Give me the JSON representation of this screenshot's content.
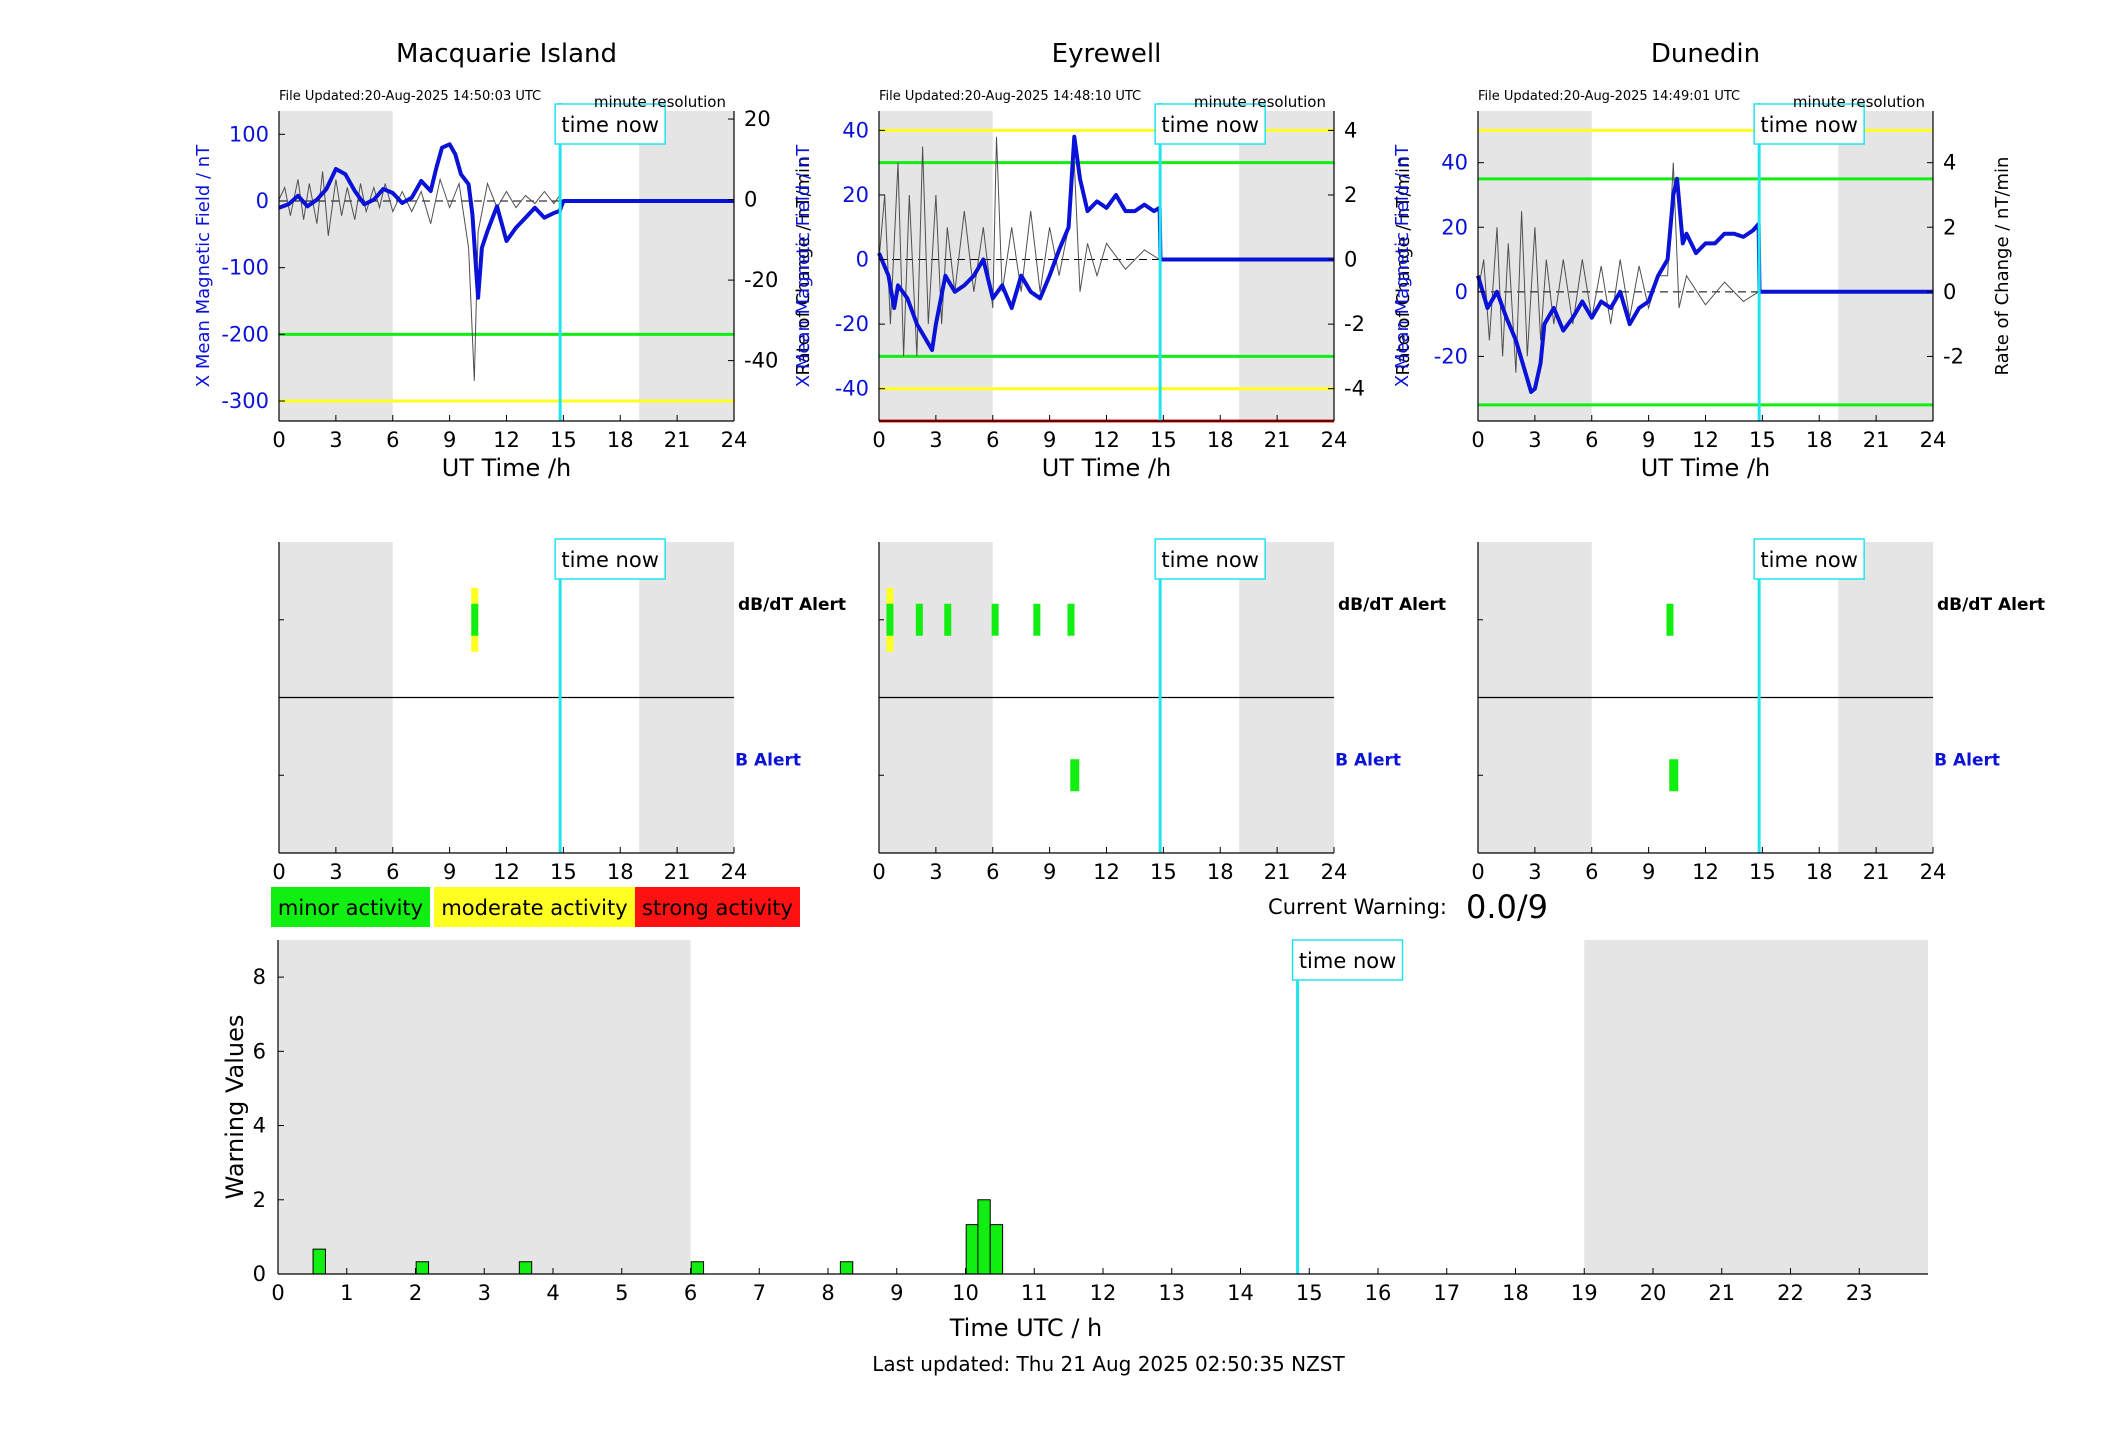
{
  "colors": {
    "x_field": "#0a12d8",
    "rate": "#505050",
    "time_now": "#22e4ee",
    "shade": "#e5e5e5",
    "minor": "#11ee11",
    "moderate": "#ffff22",
    "strong": "#ff1111"
  },
  "stations": [
    {
      "title": "Macquarie Island",
      "file_updated": "File Updated:20-Aug-2025 14:50:03 UTC",
      "resolution": "minute resolution",
      "ylabel_left": "X Mean Magnetic Field / nT",
      "ylabel_right": "Rate of Change / nT/min",
      "xlabel": "UT Time /h",
      "time_now_label": "time now",
      "ylim_left": [
        -330,
        135
      ],
      "yticks_left": [
        -300,
        -200,
        -100,
        0,
        100
      ],
      "ylim_right": [
        -55,
        22
      ],
      "yticks_right": [
        -40,
        -20,
        0,
        20
      ],
      "xticks": [
        0,
        3,
        6,
        9,
        12,
        15,
        18,
        21,
        24
      ],
      "xlim": [
        0,
        24
      ],
      "shade": [
        [
          0,
          6
        ],
        [
          19,
          24
        ]
      ],
      "time_now": 14.83,
      "thresholds": [
        {
          "value": -200,
          "level": "minor"
        },
        {
          "value": -300,
          "level": "moderate"
        }
      ],
      "x_series": [
        [
          0,
          -10
        ],
        [
          0.5,
          -5
        ],
        [
          1,
          8
        ],
        [
          1.5,
          -8
        ],
        [
          2,
          2
        ],
        [
          2.5,
          18
        ],
        [
          3,
          48
        ],
        [
          3.5,
          40
        ],
        [
          4,
          15
        ],
        [
          4.5,
          -5
        ],
        [
          5,
          2
        ],
        [
          5.5,
          18
        ],
        [
          6,
          12
        ],
        [
          6.5,
          -3
        ],
        [
          7,
          5
        ],
        [
          7.5,
          30
        ],
        [
          8,
          15
        ],
        [
          8.3,
          50
        ],
        [
          8.6,
          80
        ],
        [
          9,
          85
        ],
        [
          9.3,
          70
        ],
        [
          9.6,
          40
        ],
        [
          10,
          25
        ],
        [
          10.2,
          -20
        ],
        [
          10.4,
          -105
        ],
        [
          10.5,
          -145
        ],
        [
          10.7,
          -70
        ],
        [
          11,
          -45
        ],
        [
          11.5,
          -8
        ],
        [
          12,
          -60
        ],
        [
          12.5,
          -40
        ],
        [
          13,
          -25
        ],
        [
          13.5,
          -10
        ],
        [
          14,
          -25
        ],
        [
          14.5,
          -18
        ],
        [
          14.8,
          -15
        ],
        [
          15,
          0
        ],
        [
          24,
          0
        ]
      ],
      "rate_series": [
        [
          0,
          0
        ],
        [
          0.3,
          3
        ],
        [
          0.6,
          -4
        ],
        [
          1,
          5
        ],
        [
          1.3,
          -5
        ],
        [
          1.6,
          4
        ],
        [
          2,
          -6
        ],
        [
          2.3,
          7
        ],
        [
          2.6,
          -9
        ],
        [
          3,
          5
        ],
        [
          3.3,
          -4
        ],
        [
          3.6,
          3
        ],
        [
          4,
          -5
        ],
        [
          4.3,
          4
        ],
        [
          4.6,
          -3
        ],
        [
          5,
          3
        ],
        [
          5.3,
          -2
        ],
        [
          5.6,
          4
        ],
        [
          6,
          -3
        ],
        [
          6.5,
          2
        ],
        [
          7,
          -3
        ],
        [
          7.5,
          2
        ],
        [
          8,
          -6
        ],
        [
          8.5,
          5
        ],
        [
          9,
          -2
        ],
        [
          9.5,
          4
        ],
        [
          10,
          -12
        ],
        [
          10.3,
          -45
        ],
        [
          10.5,
          -8
        ],
        [
          11,
          4
        ],
        [
          11.5,
          -2
        ],
        [
          12,
          2
        ],
        [
          12.5,
          -2
        ],
        [
          13,
          1
        ],
        [
          13.5,
          -1
        ],
        [
          14,
          2
        ],
        [
          14.5,
          -1
        ],
        [
          14.8,
          1
        ]
      ]
    },
    {
      "title": "Eyrewell",
      "file_updated": "File Updated:20-Aug-2025 14:48:10 UTC",
      "resolution": "minute resolution",
      "ylabel_left": "X Mean Magnetic Field / nT",
      "ylabel_right": "Rate of Change / nT/min",
      "xlabel": "UT Time /h",
      "time_now_label": "time now",
      "ylim_left": [
        -50,
        46
      ],
      "yticks_left": [
        -40,
        -20,
        0,
        20,
        40
      ],
      "ylim_right": [
        -5,
        4.6
      ],
      "yticks_right": [
        -4,
        -2,
        0,
        2,
        4
      ],
      "xticks": [
        0,
        3,
        6,
        9,
        12,
        15,
        18,
        21,
        24
      ],
      "xlim": [
        0,
        24
      ],
      "shade": [
        [
          0,
          6
        ],
        [
          19,
          24
        ]
      ],
      "time_now": 14.83,
      "thresholds": [
        {
          "value": 40,
          "level": "moderate"
        },
        {
          "value": 30,
          "level": "minor"
        },
        {
          "value": -30,
          "level": "minor"
        },
        {
          "value": -40,
          "level": "moderate"
        },
        {
          "value": -50,
          "level": "strong"
        }
      ],
      "x_series": [
        [
          0,
          2
        ],
        [
          0.5,
          -5
        ],
        [
          0.8,
          -15
        ],
        [
          1,
          -8
        ],
        [
          1.5,
          -12
        ],
        [
          2,
          -20
        ],
        [
          2.5,
          -25
        ],
        [
          2.8,
          -28
        ],
        [
          3,
          -20
        ],
        [
          3.5,
          -5
        ],
        [
          4,
          -10
        ],
        [
          4.5,
          -8
        ],
        [
          5,
          -5
        ],
        [
          5.5,
          0
        ],
        [
          6,
          -12
        ],
        [
          6.5,
          -8
        ],
        [
          7,
          -15
        ],
        [
          7.5,
          -5
        ],
        [
          8,
          -10
        ],
        [
          8.5,
          -12
        ],
        [
          9,
          -5
        ],
        [
          9.5,
          3
        ],
        [
          10,
          10
        ],
        [
          10.3,
          38
        ],
        [
          10.6,
          25
        ],
        [
          11,
          15
        ],
        [
          11.5,
          18
        ],
        [
          12,
          16
        ],
        [
          12.5,
          20
        ],
        [
          13,
          15
        ],
        [
          13.5,
          15
        ],
        [
          14,
          17
        ],
        [
          14.5,
          15
        ],
        [
          14.8,
          16
        ],
        [
          14.85,
          0
        ],
        [
          24,
          0
        ]
      ],
      "rate_series": [
        [
          0,
          0
        ],
        [
          0.3,
          2
        ],
        [
          0.6,
          -2
        ],
        [
          1,
          3
        ],
        [
          1.3,
          -3
        ],
        [
          1.6,
          2
        ],
        [
          2,
          -3
        ],
        [
          2.3,
          3.5
        ],
        [
          2.6,
          -2
        ],
        [
          3,
          2
        ],
        [
          3.3,
          -2
        ],
        [
          3.6,
          1
        ],
        [
          4,
          -1
        ],
        [
          4.5,
          1.5
        ],
        [
          5,
          -1
        ],
        [
          5.5,
          1
        ],
        [
          6,
          -1.5
        ],
        [
          6.2,
          3.8
        ],
        [
          6.5,
          -1
        ],
        [
          7,
          1
        ],
        [
          7.5,
          -1
        ],
        [
          8,
          1.5
        ],
        [
          8.5,
          -1
        ],
        [
          9,
          1
        ],
        [
          9.5,
          -0.5
        ],
        [
          10,
          1
        ],
        [
          10.3,
          3
        ],
        [
          10.6,
          -1
        ],
        [
          11,
          0.5
        ],
        [
          11.5,
          -0.5
        ],
        [
          12,
          0.5
        ],
        [
          13,
          -0.3
        ],
        [
          14,
          0.3
        ],
        [
          14.8,
          0
        ]
      ]
    },
    {
      "title": "Dunedin",
      "file_updated": "File Updated:20-Aug-2025 14:49:01 UTC",
      "resolution": "minute resolution",
      "ylabel_left": "X Mean Magnetic Field / nT",
      "ylabel_right": "Rate of Change / nT/min",
      "xlabel": "UT Time /h",
      "time_now_label": "time now",
      "ylim_left": [
        -40,
        56
      ],
      "yticks_left": [
        -20,
        0,
        20,
        40
      ],
      "ylim_right": [
        -4,
        5.6
      ],
      "yticks_right": [
        -2,
        0,
        2,
        4
      ],
      "xticks": [
        0,
        3,
        6,
        9,
        12,
        15,
        18,
        21,
        24
      ],
      "xlim": [
        0,
        24
      ],
      "shade": [
        [
          0,
          6
        ],
        [
          19,
          24
        ]
      ],
      "time_now": 14.83,
      "thresholds": [
        {
          "value": 50,
          "level": "moderate"
        },
        {
          "value": 35,
          "level": "minor"
        },
        {
          "value": -35,
          "level": "minor"
        }
      ],
      "x_series": [
        [
          0,
          5
        ],
        [
          0.5,
          -5
        ],
        [
          1,
          0
        ],
        [
          1.5,
          -8
        ],
        [
          2,
          -15
        ],
        [
          2.5,
          -25
        ],
        [
          2.8,
          -31
        ],
        [
          3,
          -30
        ],
        [
          3.3,
          -22
        ],
        [
          3.5,
          -10
        ],
        [
          4,
          -5
        ],
        [
          4.5,
          -12
        ],
        [
          5,
          -8
        ],
        [
          5.5,
          -3
        ],
        [
          6,
          -8
        ],
        [
          6.5,
          -3
        ],
        [
          7,
          -5
        ],
        [
          7.5,
          0
        ],
        [
          8,
          -10
        ],
        [
          8.5,
          -5
        ],
        [
          9,
          -3
        ],
        [
          9.5,
          5
        ],
        [
          10,
          10
        ],
        [
          10.3,
          30
        ],
        [
          10.5,
          35
        ],
        [
          10.8,
          15
        ],
        [
          11,
          18
        ],
        [
          11.5,
          12
        ],
        [
          12,
          15
        ],
        [
          12.5,
          15
        ],
        [
          13,
          18
        ],
        [
          13.5,
          18
        ],
        [
          14,
          17
        ],
        [
          14.5,
          19
        ],
        [
          14.8,
          21
        ],
        [
          14.85,
          0
        ],
        [
          24,
          0
        ]
      ],
      "rate_series": [
        [
          0,
          0
        ],
        [
          0.3,
          1
        ],
        [
          0.6,
          -1.5
        ],
        [
          1,
          2
        ],
        [
          1.3,
          -2
        ],
        [
          1.6,
          1.5
        ],
        [
          2,
          -2.5
        ],
        [
          2.3,
          2.5
        ],
        [
          2.6,
          -2
        ],
        [
          3,
          2
        ],
        [
          3.3,
          -1.5
        ],
        [
          3.6,
          1
        ],
        [
          4,
          -1
        ],
        [
          4.5,
          1
        ],
        [
          5,
          -1
        ],
        [
          5.5,
          1
        ],
        [
          6,
          -0.8
        ],
        [
          6.5,
          0.8
        ],
        [
          7,
          -1
        ],
        [
          7.5,
          1
        ],
        [
          8,
          -0.8
        ],
        [
          8.5,
          0.8
        ],
        [
          9,
          -0.5
        ],
        [
          9.5,
          0.5
        ],
        [
          10,
          0.5
        ],
        [
          10.3,
          4
        ],
        [
          10.6,
          -0.5
        ],
        [
          11,
          0.5
        ],
        [
          12,
          -0.4
        ],
        [
          13,
          0.3
        ],
        [
          14,
          -0.3
        ],
        [
          14.8,
          0
        ]
      ]
    }
  ],
  "alert_panels": [
    {
      "dbdt_label": "dB/dT Alert",
      "b_label": "B Alert",
      "time_now_label": "time now",
      "dbdt": [
        {
          "t": 10.3,
          "level": "moderate"
        }
      ],
      "b": []
    },
    {
      "dbdt_label": "dB/dT Alert",
      "b_label": "B Alert",
      "time_now_label": "time now",
      "dbdt": [
        {
          "t": 0.55,
          "level": "moderate"
        },
        {
          "t": 2.1,
          "level": "minor"
        },
        {
          "t": 3.6,
          "level": "minor"
        },
        {
          "t": 6.1,
          "level": "minor"
        },
        {
          "t": 8.3,
          "level": "minor"
        },
        {
          "t": 10.1,
          "level": "minor"
        }
      ],
      "b": [
        {
          "t": 10.3,
          "level": "minor"
        }
      ]
    },
    {
      "dbdt_label": "dB/dT Alert",
      "b_label": "B Alert",
      "time_now_label": "time now",
      "dbdt": [
        {
          "t": 10.1,
          "level": "minor"
        }
      ],
      "b": [
        {
          "t": 10.3,
          "level": "minor"
        }
      ]
    }
  ],
  "legend": {
    "minor": "minor activity",
    "moderate": "moderate activity",
    "strong": "strong activity"
  },
  "current_warning": {
    "label": "Current Warning:",
    "value": "0.0/9"
  },
  "chart_data": {
    "type": "bar",
    "xlabel": "Time UTC / h",
    "ylabel": "Warning Values",
    "xlim": [
      0,
      24
    ],
    "ylim": [
      0,
      9
    ],
    "xticks": [
      0,
      1,
      2,
      3,
      4,
      5,
      6,
      7,
      8,
      9,
      10,
      11,
      12,
      13,
      14,
      15,
      16,
      17,
      18,
      19,
      20,
      21,
      22,
      23
    ],
    "yticks": [
      0,
      2,
      4,
      6,
      8
    ],
    "grid": false,
    "shade": [
      [
        0,
        6
      ],
      [
        19,
        24
      ]
    ],
    "time_now": 14.83,
    "time_now_label": "time now",
    "bar_width": 0.18,
    "bars": [
      {
        "x": 0.6,
        "y": 0.67
      },
      {
        "x": 2.1,
        "y": 0.33
      },
      {
        "x": 3.6,
        "y": 0.33
      },
      {
        "x": 6.1,
        "y": 0.33
      },
      {
        "x": 8.27,
        "y": 0.33
      },
      {
        "x": 10.1,
        "y": 1.33
      },
      {
        "x": 10.27,
        "y": 2.0
      },
      {
        "x": 10.45,
        "y": 1.33
      }
    ]
  },
  "footer": {
    "last_updated": "Last updated: Thu 21 Aug 2025 02:50:35 NZST"
  }
}
